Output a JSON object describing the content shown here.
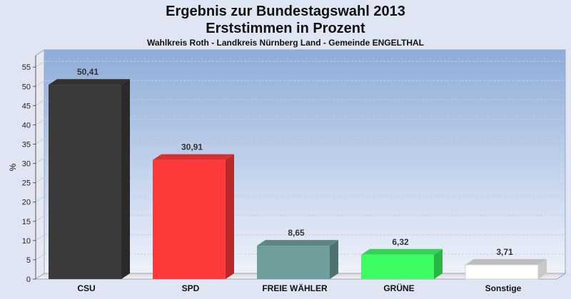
{
  "chart_data": {
    "type": "bar",
    "title": "Ergebnis zur Bundestagswahl 2013",
    "title2": "Erststimmen in Prozent",
    "subtitle": "Wahlkreis Roth - Landkreis Nürnberg Land - Gemeinde ENGELTHAL",
    "ylabel": "%",
    "xlabel": "",
    "ylim": [
      0,
      58
    ],
    "yticks": [
      0,
      5,
      10,
      15,
      20,
      25,
      30,
      35,
      40,
      45,
      50,
      55
    ],
    "grid": true,
    "categories": [
      "CSU",
      "SPD",
      "FREIE WÄHLER",
      "GRÜNE",
      "Sonstige"
    ],
    "values": [
      50.41,
      30.91,
      8.65,
      6.32,
      3.71
    ],
    "value_labels": [
      "50,41",
      "30,91",
      "8,65",
      "6,32",
      "3,71"
    ],
    "colors": [
      "#3a3a3a",
      "#ff3a3a",
      "#6e9e9b",
      "#3dfb63",
      "#ffffff"
    ]
  }
}
